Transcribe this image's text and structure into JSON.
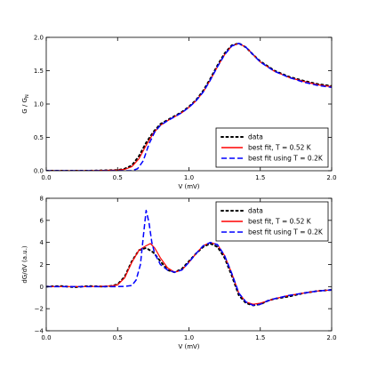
{
  "chart_data": [
    {
      "type": "line",
      "title": "",
      "xlabel": "V (mV)",
      "ylabel": "G / G",
      "ylabel_subscript": "N",
      "xlim": [
        0.0,
        2.0
      ],
      "ylim": [
        0.0,
        2.0
      ],
      "xticks": [
        "0.0",
        "0.5",
        "1.0",
        "1.5",
        "2.0"
      ],
      "yticks": [
        "0.0",
        "0.5",
        "1.0",
        "1.5",
        "2.0"
      ],
      "grid": false,
      "legend_position": "lower-right",
      "series": [
        {
          "name": "data",
          "style": "dotted",
          "color": "#000000",
          "x": [
            0.0,
            0.3,
            0.5,
            0.55,
            0.6,
            0.65,
            0.7,
            0.75,
            0.8,
            0.85,
            0.9,
            0.95,
            1.0,
            1.05,
            1.1,
            1.15,
            1.2,
            1.25,
            1.3,
            1.35,
            1.4,
            1.45,
            1.5,
            1.6,
            1.7,
            1.8,
            1.9,
            2.0
          ],
          "y": [
            0.0,
            0.0,
            0.01,
            0.03,
            0.08,
            0.22,
            0.42,
            0.58,
            0.7,
            0.76,
            0.82,
            0.88,
            0.96,
            1.06,
            1.2,
            1.38,
            1.58,
            1.76,
            1.88,
            1.91,
            1.85,
            1.74,
            1.64,
            1.5,
            1.41,
            1.35,
            1.3,
            1.27
          ]
        },
        {
          "name": "best fit, T = 0.52 K",
          "style": "solid",
          "color": "#ff0000",
          "x": [
            0.0,
            0.3,
            0.5,
            0.55,
            0.6,
            0.65,
            0.7,
            0.75,
            0.8,
            0.85,
            0.9,
            0.95,
            1.0,
            1.05,
            1.1,
            1.15,
            1.2,
            1.25,
            1.3,
            1.35,
            1.4,
            1.45,
            1.5,
            1.6,
            1.7,
            1.8,
            1.9,
            2.0
          ],
          "y": [
            0.0,
            0.0,
            0.01,
            0.02,
            0.06,
            0.18,
            0.38,
            0.56,
            0.68,
            0.75,
            0.81,
            0.87,
            0.95,
            1.05,
            1.18,
            1.36,
            1.56,
            1.74,
            1.87,
            1.91,
            1.85,
            1.74,
            1.63,
            1.49,
            1.4,
            1.34,
            1.29,
            1.26
          ]
        },
        {
          "name": "best fit using T = 0.2K",
          "style": "dashed",
          "color": "#0000ff",
          "x": [
            0.0,
            0.3,
            0.5,
            0.55,
            0.6,
            0.64,
            0.68,
            0.72,
            0.76,
            0.8,
            0.85,
            0.9,
            0.95,
            1.0,
            1.05,
            1.1,
            1.15,
            1.2,
            1.25,
            1.3,
            1.35,
            1.4,
            1.45,
            1.5,
            1.6,
            1.7,
            1.8,
            1.9,
            2.0
          ],
          "y": [
            0.0,
            0.0,
            0.0,
            0.0,
            0.0,
            0.03,
            0.15,
            0.4,
            0.58,
            0.68,
            0.75,
            0.81,
            0.87,
            0.95,
            1.05,
            1.18,
            1.36,
            1.56,
            1.74,
            1.87,
            1.91,
            1.85,
            1.74,
            1.63,
            1.49,
            1.4,
            1.33,
            1.28,
            1.25
          ]
        }
      ]
    },
    {
      "type": "line",
      "title": "",
      "xlabel": "V (mV)",
      "ylabel": "dG/dV (a.u.)",
      "xlim": [
        0.0,
        2.0
      ],
      "ylim": [
        -4,
        8
      ],
      "xticks": [
        "0.0",
        "0.5",
        "1.0",
        "1.5",
        "2.0"
      ],
      "yticks": [
        "−4",
        "−2",
        "0",
        "2",
        "4",
        "6",
        "8"
      ],
      "grid": false,
      "legend_position": "top-right",
      "series": [
        {
          "name": "data",
          "style": "dotted",
          "color": "#000000",
          "x": [
            0.0,
            0.1,
            0.2,
            0.3,
            0.4,
            0.45,
            0.5,
            0.55,
            0.6,
            0.65,
            0.7,
            0.75,
            0.8,
            0.85,
            0.9,
            0.95,
            1.0,
            1.05,
            1.1,
            1.15,
            1.2,
            1.25,
            1.3,
            1.35,
            1.4,
            1.45,
            1.5,
            1.55,
            1.6,
            1.7,
            1.8,
            1.9,
            2.0
          ],
          "y": [
            0.0,
            0.05,
            -0.05,
            0.05,
            0.0,
            0.05,
            0.2,
            0.9,
            2.3,
            3.3,
            3.5,
            3.1,
            2.3,
            1.5,
            1.3,
            1.6,
            2.3,
            3.0,
            3.6,
            3.9,
            3.6,
            2.6,
            1.0,
            -0.8,
            -1.5,
            -1.7,
            -1.6,
            -1.3,
            -1.1,
            -0.9,
            -0.6,
            -0.4,
            -0.3
          ]
        },
        {
          "name": "best fit, T = 0.52 K",
          "style": "solid",
          "color": "#ff0000",
          "x": [
            0.0,
            0.3,
            0.45,
            0.5,
            0.55,
            0.6,
            0.65,
            0.7,
            0.73,
            0.76,
            0.8,
            0.85,
            0.9,
            0.95,
            1.0,
            1.05,
            1.1,
            1.15,
            1.2,
            1.25,
            1.3,
            1.35,
            1.4,
            1.45,
            1.5,
            1.55,
            1.6,
            1.7,
            1.8,
            1.9,
            2.0
          ],
          "y": [
            0.0,
            0.0,
            0.05,
            0.15,
            0.8,
            2.2,
            3.3,
            3.7,
            3.9,
            3.5,
            2.6,
            1.7,
            1.3,
            1.5,
            2.2,
            3.0,
            3.7,
            4.0,
            3.8,
            2.8,
            1.2,
            -0.6,
            -1.4,
            -1.6,
            -1.5,
            -1.3,
            -1.1,
            -0.8,
            -0.6,
            -0.4,
            -0.3
          ]
        },
        {
          "name": "best fit using T = 0.2K",
          "style": "dashed",
          "color": "#0000ff",
          "x": [
            0.0,
            0.3,
            0.5,
            0.55,
            0.6,
            0.63,
            0.66,
            0.68,
            0.7,
            0.72,
            0.74,
            0.76,
            0.8,
            0.85,
            0.9,
            0.95,
            1.0,
            1.05,
            1.1,
            1.15,
            1.2,
            1.25,
            1.3,
            1.35,
            1.4,
            1.45,
            1.5,
            1.55,
            1.6,
            1.7,
            1.8,
            1.9,
            2.0
          ],
          "y": [
            0.0,
            0.0,
            0.0,
            0.02,
            0.1,
            0.6,
            2.0,
            4.5,
            6.9,
            5.8,
            4.0,
            3.0,
            2.0,
            1.5,
            1.3,
            1.5,
            2.2,
            3.0,
            3.7,
            4.0,
            3.8,
            2.8,
            1.2,
            -0.6,
            -1.4,
            -1.7,
            -1.6,
            -1.3,
            -1.1,
            -0.8,
            -0.6,
            -0.4,
            -0.3
          ]
        }
      ]
    }
  ]
}
